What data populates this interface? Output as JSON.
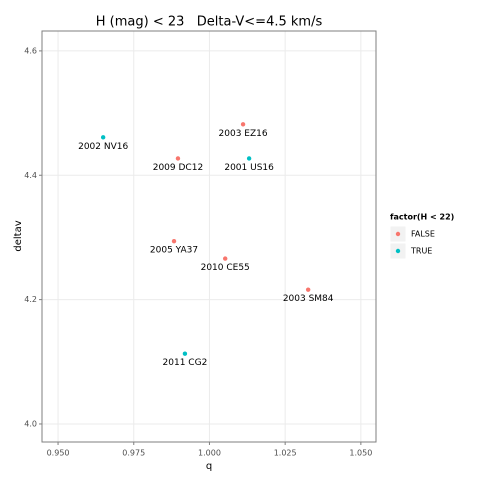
{
  "chart_data": {
    "type": "scatter",
    "title": "H (mag) < 23   Delta-V<=4.5 km/s",
    "x_label": "q",
    "y_label": "deltav",
    "legend_title": "factor(H < 22)",
    "legend_position": "right",
    "grid": true,
    "series": [
      {
        "name": "FALSE",
        "color": "#F8766D",
        "x": [
          1.0111,
          0.9896,
          0.9883,
          1.0052,
          1.0326
        ],
        "values": [
          4.482,
          4.427,
          4.294,
          4.266,
          4.216
        ],
        "labels": [
          "2003 EZ16",
          "2009 DC12",
          "2005 YA37",
          "2010 CE55",
          "2003 SM84"
        ]
      },
      {
        "name": "TRUE",
        "color": "#00BFC4",
        "x": [
          0.9649,
          1.0131,
          0.9919
        ],
        "values": [
          4.461,
          4.427,
          4.113
        ],
        "labels": [
          "2002 NV16",
          "2001 US16",
          "2011 CG2"
        ]
      }
    ],
    "xlim": [
      0.9447,
      1.055
    ],
    "ylim": [
      3.971,
      4.632
    ],
    "xticks": [
      {
        "value": 0.95,
        "label": "0.950"
      },
      {
        "value": 0.975,
        "label": "0.975"
      },
      {
        "value": 1.0,
        "label": "1.000"
      },
      {
        "value": 1.025,
        "label": "1.025"
      },
      {
        "value": 1.05,
        "label": "1.050"
      }
    ],
    "yticks": [
      {
        "value": 4.0,
        "label": "4.0"
      },
      4.2,
      4.4,
      4.6
    ]
  }
}
